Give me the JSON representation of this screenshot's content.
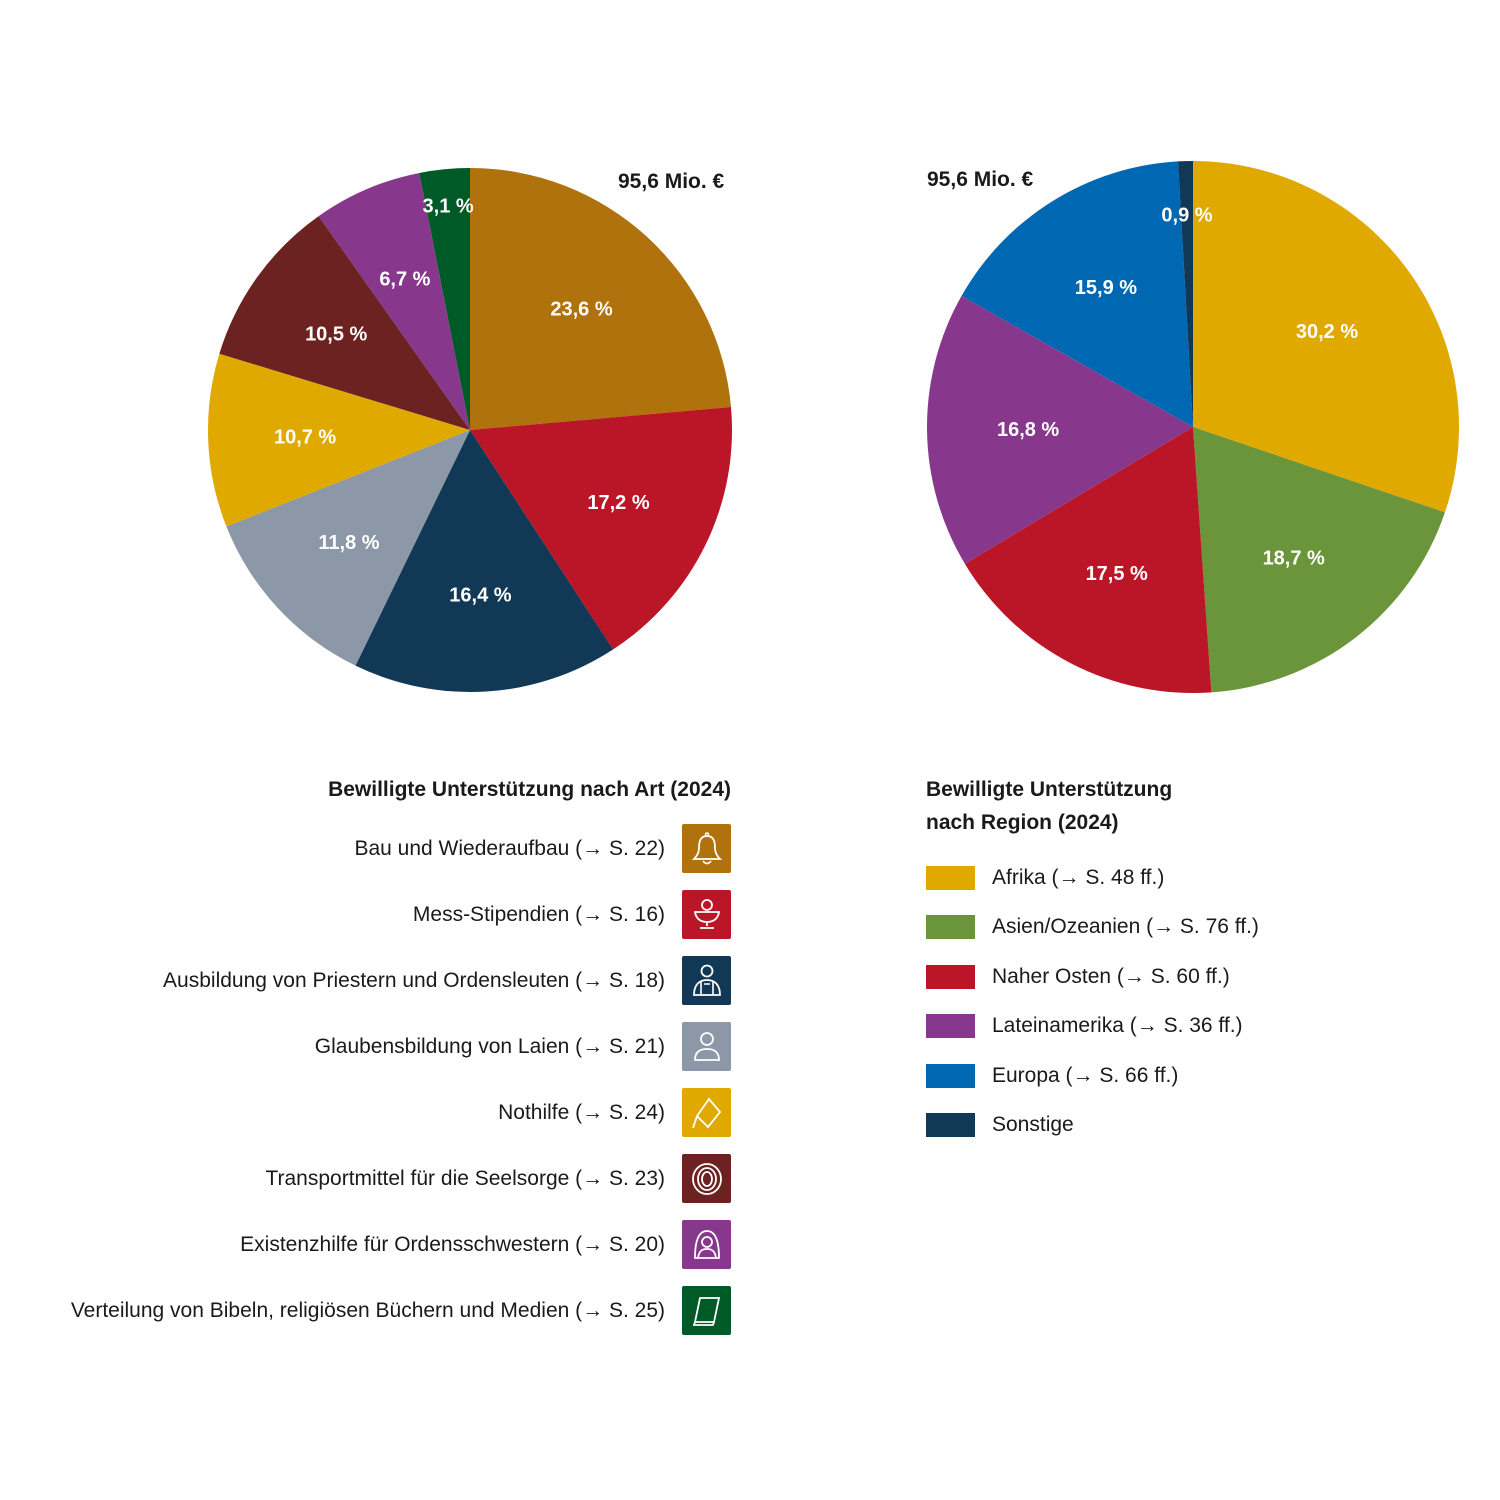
{
  "chart_data": [
    {
      "type": "pie",
      "title": "Bewilligte Unterstützung nach Art (2024)",
      "total_label": "95,6 Mio. €",
      "slices": [
        {
          "name": "Bau und Wiederaufbau (→ S. 22)",
          "value": 23.6,
          "label": "23,6 %",
          "color": "#b0720c",
          "icon": "bell-icon"
        },
        {
          "name": "Mess-Stipendien (→ S. 16)",
          "value": 17.2,
          "label": "17,2 %",
          "color": "#bb1528",
          "icon": "chalice-icon"
        },
        {
          "name": "Ausbildung von Priestern und Ordensleuten (→ S. 18)",
          "value": 16.4,
          "label": "16,4 %",
          "color": "#113955",
          "icon": "priest-icon"
        },
        {
          "name": "Glaubensbildung von Laien (→ S. 21)",
          "value": 11.8,
          "label": "11,8 %",
          "color": "#8c97a7",
          "icon": "person-icon"
        },
        {
          "name": "Nothilfe (→ S. 24)",
          "value": 10.7,
          "label": "10,7 %",
          "color": "#e0a900",
          "icon": "diamond-icon"
        },
        {
          "name": "Transportmittel für die Seelsorge (→ S. 23)",
          "value": 10.5,
          "label": "10,5 %",
          "color": "#6b2220",
          "icon": "tire-icon"
        },
        {
          "name": "Existenzhilfe für Ordensschwestern (→ S. 20)",
          "value": 6.7,
          "label": "6,7 %",
          "color": "#87388c",
          "icon": "nun-icon"
        },
        {
          "name": "Verteilung von Bibeln, religiösen Büchern und Medien (→ S. 25)",
          "value": 3.1,
          "label": "3,1 %",
          "color": "#005a27",
          "icon": "book-icon"
        }
      ]
    },
    {
      "type": "pie",
      "title": "Bewilligte Unterstützung nach Region (2024)",
      "title_lines": [
        "Bewilligte Unterstützung",
        "nach Region (2024)"
      ],
      "total_label": "95,6 Mio. €",
      "slices": [
        {
          "name": "Afrika (→ S. 48 ff.)",
          "value": 30.2,
          "label": "30,2 %",
          "color": "#e0a900"
        },
        {
          "name": "Asien/Ozeanien (→ S. 76 ff.)",
          "value": 18.7,
          "label": "18,7 %",
          "color": "#6a953a"
        },
        {
          "name": "Naher Osten (→ S. 60 ff.)",
          "value": 17.5,
          "label": "17,5 %",
          "color": "#bb1528"
        },
        {
          "name": "Lateinamerika (→ S. 36 ff.)",
          "value": 16.8,
          "label": "16,8 %",
          "color": "#87388c"
        },
        {
          "name": "Europa (→ S. 66 ff.)",
          "value": 15.9,
          "label": "15,9 %",
          "color": "#0068b3"
        },
        {
          "name": "Sonstige",
          "value": 0.9,
          "label": "0,9 %",
          "color": "#113955"
        }
      ]
    }
  ]
}
